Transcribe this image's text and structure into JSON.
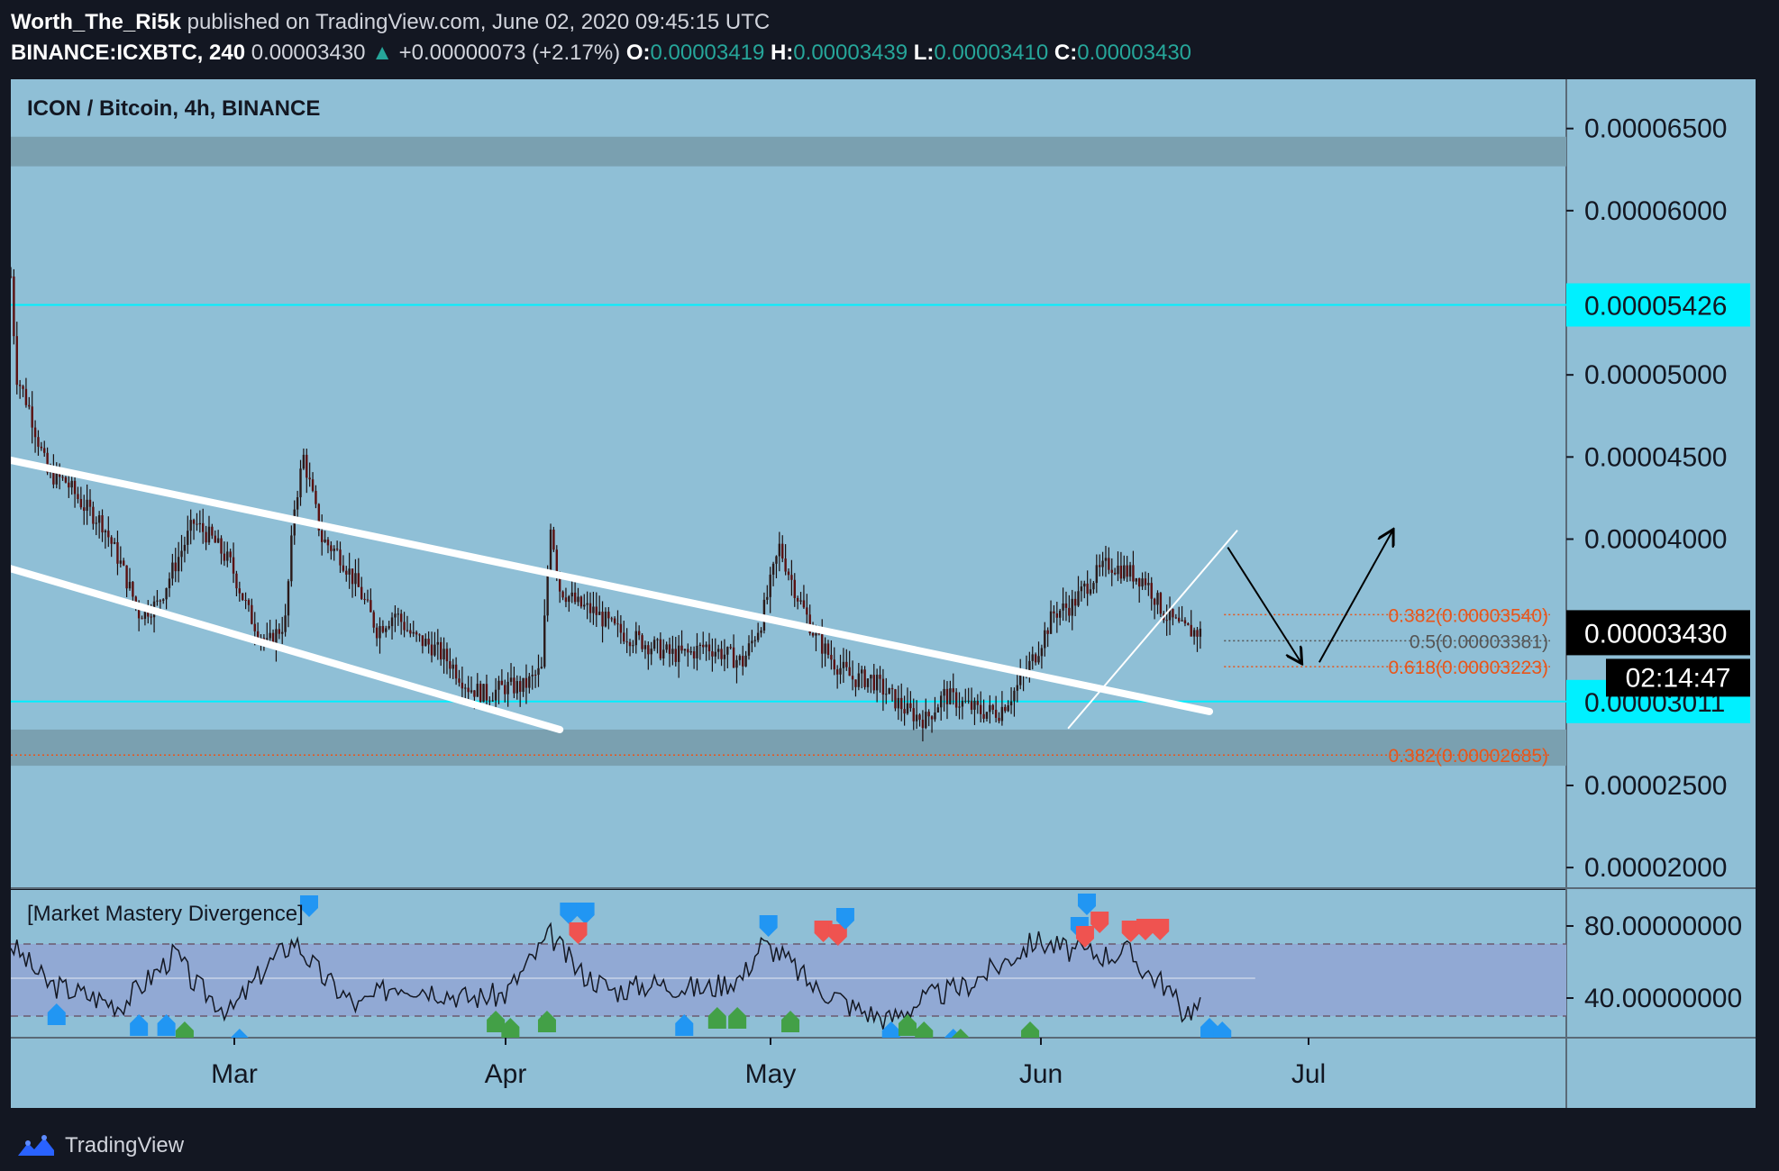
{
  "header": {
    "author": "Worth_The_Ri5k",
    "published": " published on TradingView.com, June 02, 2020 09:45:15 UTC",
    "symbol": "BINANCE:ICXBTC, 240",
    "last": "0.00003430",
    "change_arrow": "▲",
    "change": "+0.00000073 (+2.17%)",
    "o_label": "O:",
    "o_value": "0.00003419",
    "h_label": "H:",
    "h_value": "0.00003439",
    "l_label": "L:",
    "l_value": "0.00003410",
    "c_label": "C:",
    "c_value": "0.00003430"
  },
  "chart": {
    "title": "ICON / Bitcoin, 4h, BINANCE",
    "indicator_title": "[Market Mastery Divergence]",
    "current_price": "0.00003430",
    "countdown": "02:14:47",
    "brand": "TradingView",
    "colors": {
      "panel_bg": "#8fbfd6",
      "indicator_bg": "#91a9d4",
      "zone": "#7aa0b0",
      "cyan": "#00f0ff",
      "fib": "#e8551a",
      "candle": "#1a0d0d",
      "bg": "#131722"
    }
  },
  "chart_data": {
    "type": "candlestick",
    "price_axis": {
      "ylim": [
        1.88e-05,
        6.8e-05
      ],
      "ticks": [
        "0.00006500",
        "0.00006000",
        "0.00005000",
        "0.00004500",
        "0.00004000",
        "0.00002500",
        "0.00002000"
      ]
    },
    "x_axis": {
      "labels": [
        "Mar",
        "Apr",
        "May",
        "Jun",
        "Jul"
      ]
    },
    "horizontal_levels": [
      {
        "price": 5.426e-05,
        "label": "0.00005426",
        "style": "cyan"
      },
      {
        "price": 3.011e-05,
        "label": "0.00003011",
        "style": "cyan"
      }
    ],
    "zones": [
      {
        "from": 6.27e-05,
        "to": 6.45e-05
      },
      {
        "from": 2.62e-05,
        "to": 2.84e-05
      }
    ],
    "fib_levels": [
      {
        "label": "0.382(0.00003540)",
        "price": 3.54e-05,
        "color": "#e8551a"
      },
      {
        "label": "0.5(0.00003381)",
        "price": 3.381e-05,
        "color": "#555555"
      },
      {
        "label": "0.618(0.00003223)",
        "price": 3.223e-05,
        "color": "#e8551a"
      },
      {
        "label": "0.382(0.00002685)",
        "price": 2.685e-05,
        "color": "#e8551a"
      }
    ],
    "price_path": [
      [
        0,
        5.6
      ],
      [
        0.3,
        5.0
      ],
      [
        1,
        4.8
      ],
      [
        2,
        4.4
      ],
      [
        3,
        4.35
      ],
      [
        4,
        4.2
      ],
      [
        5,
        4.1
      ],
      [
        6,
        3.85
      ],
      [
        7,
        3.55
      ],
      [
        8,
        3.6
      ],
      [
        9,
        3.85
      ],
      [
        10,
        4.1
      ],
      [
        11,
        4.0
      ],
      [
        12,
        3.85
      ],
      [
        13,
        3.55
      ],
      [
        14,
        3.35
      ],
      [
        15,
        3.5
      ],
      [
        15.5,
        4.2
      ],
      [
        16,
        4.5
      ],
      [
        17,
        4.0
      ],
      [
        18,
        3.9
      ],
      [
        19,
        3.7
      ],
      [
        20,
        3.45
      ],
      [
        21,
        3.55
      ],
      [
        22,
        3.4
      ],
      [
        23,
        3.35
      ],
      [
        24,
        3.25
      ],
      [
        25,
        3.1
      ],
      [
        26,
        3.05
      ],
      [
        27,
        3.1
      ],
      [
        28,
        3.1
      ],
      [
        29,
        3.2
      ],
      [
        29.5,
        4.1
      ],
      [
        30,
        3.7
      ],
      [
        31,
        3.6
      ],
      [
        32,
        3.55
      ],
      [
        33,
        3.45
      ],
      [
        34,
        3.4
      ],
      [
        35,
        3.35
      ],
      [
        36,
        3.3
      ],
      [
        37,
        3.3
      ],
      [
        38,
        3.35
      ],
      [
        39,
        3.3
      ],
      [
        40,
        3.25
      ],
      [
        41,
        3.5
      ],
      [
        42,
        3.95
      ],
      [
        43,
        3.65
      ],
      [
        44,
        3.4
      ],
      [
        45,
        3.25
      ],
      [
        46,
        3.15
      ],
      [
        47,
        3.15
      ],
      [
        48,
        3.05
      ],
      [
        49,
        2.95
      ],
      [
        50,
        2.9
      ],
      [
        51,
        3.05
      ],
      [
        52,
        3.0
      ],
      [
        53,
        2.95
      ],
      [
        54,
        2.95
      ],
      [
        55,
        3.1
      ],
      [
        56,
        3.3
      ],
      [
        57,
        3.55
      ],
      [
        58,
        3.6
      ],
      [
        59,
        3.75
      ],
      [
        60,
        3.85
      ],
      [
        61,
        3.8
      ],
      [
        62,
        3.75
      ],
      [
        63,
        3.55
      ],
      [
        64,
        3.45
      ],
      [
        65,
        3.43
      ]
    ],
    "indicator": {
      "ylim": [
        18,
        100
      ],
      "ticks": [
        "80.00000000",
        "40.00000000"
      ],
      "upper_band": 70,
      "lower_band": 30,
      "mid_line": 51,
      "path": [
        [
          0,
          70
        ],
        [
          2,
          48
        ],
        [
          4,
          42
        ],
        [
          6,
          36
        ],
        [
          8,
          55
        ],
        [
          9,
          65
        ],
        [
          10,
          48
        ],
        [
          12,
          32
        ],
        [
          14,
          58
        ],
        [
          15.5,
          72
        ],
        [
          17,
          52
        ],
        [
          19,
          35
        ],
        [
          21,
          48
        ],
        [
          23,
          45
        ],
        [
          25,
          40
        ],
        [
          27,
          42
        ],
        [
          29.5,
          75
        ],
        [
          31,
          55
        ],
        [
          33,
          44
        ],
        [
          35,
          48
        ],
        [
          38,
          45
        ],
        [
          40,
          52
        ],
        [
          41,
          70
        ],
        [
          42,
          65
        ],
        [
          44,
          45
        ],
        [
          45,
          42
        ],
        [
          46,
          35
        ],
        [
          48,
          28
        ],
        [
          50,
          40
        ],
        [
          52,
          46
        ],
        [
          54,
          58
        ],
        [
          56,
          72
        ],
        [
          58,
          66
        ],
        [
          60,
          64
        ],
        [
          61,
          66
        ],
        [
          62,
          55
        ],
        [
          63,
          48
        ],
        [
          64,
          33
        ],
        [
          65,
          35
        ]
      ]
    },
    "markers": [
      {
        "x": 2.5,
        "v": 32,
        "color": "blue",
        "dir": "up"
      },
      {
        "x": 7,
        "v": 26,
        "color": "blue",
        "dir": "up"
      },
      {
        "x": 8.5,
        "v": 26,
        "color": "blue",
        "dir": "up"
      },
      {
        "x": 9.5,
        "v": 22,
        "color": "green",
        "dir": "up"
      },
      {
        "x": 12.5,
        "v": 18,
        "color": "blue",
        "dir": "up"
      },
      {
        "x": 16.3,
        "v": 90,
        "color": "blue",
        "dir": "down"
      },
      {
        "x": 26.5,
        "v": 28,
        "color": "green",
        "dir": "up"
      },
      {
        "x": 27.3,
        "v": 24,
        "color": "green",
        "dir": "up"
      },
      {
        "x": 29.3,
        "v": 28,
        "color": "green",
        "dir": "up"
      },
      {
        "x": 30.5,
        "v": 86,
        "color": "blue",
        "dir": "down"
      },
      {
        "x": 31.4,
        "v": 86,
        "color": "blue",
        "dir": "down"
      },
      {
        "x": 31,
        "v": 75,
        "color": "red",
        "dir": "down"
      },
      {
        "x": 36.8,
        "v": 26,
        "color": "blue",
        "dir": "up"
      },
      {
        "x": 38.6,
        "v": 30,
        "color": "green",
        "dir": "up"
      },
      {
        "x": 39.7,
        "v": 30,
        "color": "green",
        "dir": "up"
      },
      {
        "x": 41.4,
        "v": 79,
        "color": "blue",
        "dir": "down"
      },
      {
        "x": 42.6,
        "v": 28,
        "color": "green",
        "dir": "up"
      },
      {
        "x": 44.4,
        "v": 76,
        "color": "red",
        "dir": "down"
      },
      {
        "x": 45.2,
        "v": 74,
        "color": "red",
        "dir": "down"
      },
      {
        "x": 45.6,
        "v": 83,
        "color": "blue",
        "dir": "down"
      },
      {
        "x": 48.1,
        "v": 22,
        "color": "blue",
        "dir": "up"
      },
      {
        "x": 49,
        "v": 26,
        "color": "green",
        "dir": "up"
      },
      {
        "x": 49.9,
        "v": 22,
        "color": "green",
        "dir": "up"
      },
      {
        "x": 51.5,
        "v": 18,
        "color": "blue",
        "dir": "up"
      },
      {
        "x": 51.9,
        "v": 18,
        "color": "green",
        "dir": "up"
      },
      {
        "x": 55.7,
        "v": 22,
        "color": "green",
        "dir": "up"
      },
      {
        "x": 58.8,
        "v": 91,
        "color": "blue",
        "dir": "down"
      },
      {
        "x": 58.4,
        "v": 78,
        "color": "blue",
        "dir": "down"
      },
      {
        "x": 58.7,
        "v": 73,
        "color": "red",
        "dir": "down"
      },
      {
        "x": 59.5,
        "v": 81,
        "color": "red",
        "dir": "down"
      },
      {
        "x": 61.2,
        "v": 76,
        "color": "red",
        "dir": "down"
      },
      {
        "x": 62,
        "v": 77,
        "color": "red",
        "dir": "down"
      },
      {
        "x": 62.8,
        "v": 77,
        "color": "red",
        "dir": "down"
      },
      {
        "x": 65.5,
        "v": 24,
        "color": "blue",
        "dir": "up"
      },
      {
        "x": 66.2,
        "v": 22,
        "color": "blue",
        "dir": "up"
      }
    ],
    "trendlines": [
      {
        "from": [
          0,
          4.48
        ],
        "to": [
          65.5,
          2.95
        ],
        "color": "#ffffff",
        "width": "thick"
      },
      {
        "from": [
          0,
          3.82
        ],
        "to": [
          30,
          2.84
        ],
        "color": "#ffffff",
        "width": "thick"
      },
      {
        "from": [
          57.8,
          2.85
        ],
        "to": [
          67,
          4.05
        ],
        "color": "#ffffff",
        "width": "thin"
      }
    ],
    "projection_arrows": [
      {
        "from": [
          66.5,
          3.95
        ],
        "to": [
          70.5,
          3.25
        ]
      },
      {
        "from": [
          71.5,
          3.25
        ],
        "to": [
          75.5,
          4.05
        ]
      }
    ]
  }
}
